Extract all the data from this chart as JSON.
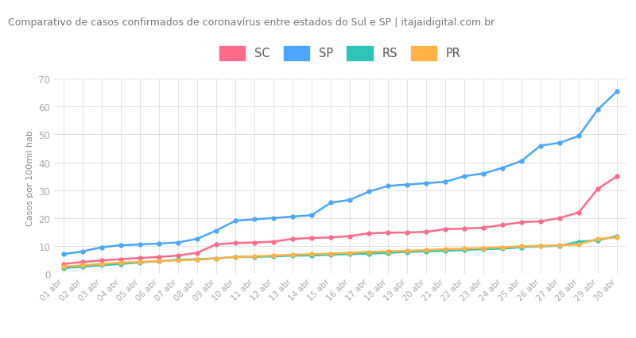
{
  "title": "Comparativo de casos confirmados de coronavírus entre estados do Sul e SP | itajaidigital.com.br",
  "ylabel": "Casos por 100mil hab.",
  "x_labels": [
    "01 abr",
    "02 abr",
    "03 abr",
    "04 abr",
    "05 abr",
    "06 abr",
    "07 abr",
    "08 abr",
    "09 abr",
    "10 abr",
    "11 abr",
    "12 abr",
    "13 abr",
    "14 abr",
    "15 abr",
    "16 abr",
    "17 abr",
    "18 abr",
    "19 abr",
    "20 abr",
    "21 abr",
    "22 abr",
    "23 abr",
    "24 abr",
    "25 abr",
    "26 abr",
    "27 abr",
    "28 abr",
    "29 abr",
    "30 abr"
  ],
  "series": {
    "SC": {
      "color": "#ff6b8a",
      "values": [
        3.5,
        4.2,
        4.7,
        5.2,
        5.6,
        6.0,
        6.5,
        7.5,
        10.5,
        11.0,
        11.2,
        11.5,
        12.5,
        12.8,
        13.0,
        13.5,
        14.5,
        14.7,
        14.8,
        15.0,
        16.0,
        16.2,
        16.5,
        17.5,
        18.5,
        18.8,
        20.0,
        22.0,
        30.5,
        35.0
      ]
    },
    "SP": {
      "color": "#4da6ff",
      "values": [
        7.0,
        8.0,
        9.5,
        10.2,
        10.5,
        10.8,
        11.2,
        12.5,
        15.5,
        19.0,
        19.5,
        20.0,
        20.5,
        21.0,
        25.5,
        26.5,
        29.5,
        31.5,
        32.0,
        32.5,
        33.0,
        35.0,
        36.0,
        38.0,
        40.5,
        46.0,
        47.0,
        49.5,
        59.0,
        65.5
      ]
    },
    "RS": {
      "color": "#2ec4b6",
      "values": [
        2.0,
        2.5,
        3.0,
        3.5,
        4.0,
        4.5,
        5.0,
        5.2,
        5.5,
        6.0,
        6.0,
        6.2,
        6.5,
        6.5,
        6.8,
        7.0,
        7.2,
        7.5,
        7.8,
        8.0,
        8.2,
        8.5,
        8.8,
        9.0,
        9.5,
        9.8,
        10.0,
        11.5,
        12.0,
        13.5
      ]
    },
    "PR": {
      "color": "#ffb347",
      "values": [
        2.5,
        3.0,
        3.5,
        4.0,
        4.2,
        4.5,
        4.8,
        5.0,
        5.5,
        6.0,
        6.2,
        6.5,
        6.8,
        7.0,
        7.2,
        7.5,
        7.8,
        8.0,
        8.2,
        8.5,
        8.8,
        9.0,
        9.2,
        9.5,
        9.8,
        10.0,
        10.2,
        10.5,
        12.5,
        13.0
      ]
    }
  },
  "ylim": [
    0,
    70
  ],
  "yticks": [
    0,
    10,
    20,
    30,
    40,
    50,
    60,
    70
  ],
  "header_color": "#ebebeb",
  "plot_bg": "#ffffff",
  "fig_bg": "#ffffff",
  "title_fontsize": 9.0,
  "legend_order": [
    "SC",
    "SP",
    "RS",
    "PR"
  ],
  "marker": "o",
  "marker_size": 3.5,
  "linewidth": 1.8,
  "tick_color": "#aaaaaa",
  "label_color": "#888888"
}
